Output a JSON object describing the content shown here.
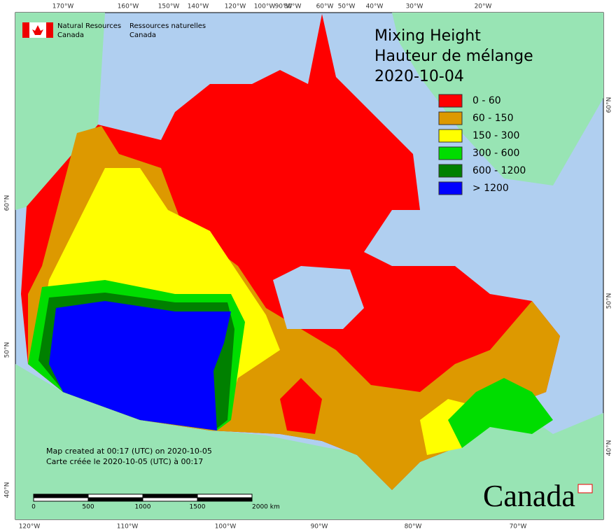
{
  "map": {
    "agency_en": [
      "Natural Resources",
      "Canada"
    ],
    "agency_fr": [
      "Ressources naturelles",
      "Canada"
    ],
    "title": [
      "Mixing Height",
      "Hauteur de mélange",
      "2020-10-04"
    ],
    "legend": [
      {
        "label": "0 - 60",
        "color": "#ff0000"
      },
      {
        "label": "60 - 150",
        "color": "#dd9900"
      },
      {
        "label": "150 - 300",
        "color": "#ffff00"
      },
      {
        "label": "300 - 600",
        "color": "#00dd00"
      },
      {
        "label": "600 - 1200",
        "color": "#008000"
      },
      {
        "label": "> 1200",
        "color": "#0000ff"
      }
    ],
    "top_longitudes": [
      "170°W",
      "160°W",
      "150°W",
      "140°W",
      "120°W",
      "100°W",
      "90°W",
      "80°W",
      "60°W",
      "50°W",
      "40°W",
      "30°W",
      "20°W"
    ],
    "bottom_longitudes": [
      "120°W",
      "110°W",
      "100°W",
      "90°W",
      "80°W",
      "70°W"
    ],
    "left_latitudes": [
      "60°N",
      "50°N",
      "40°N"
    ],
    "right_latitudes": [
      "60°N",
      "50°N",
      "40°N"
    ],
    "notes": [
      "Map created at 00:17 (UTC) on 2020-10-05",
      "Carte créée le 2020-10-05 (UTC) à 00:17"
    ],
    "scale_labels": [
      "0",
      "500",
      "1000",
      "1500",
      "2000 km"
    ],
    "wordmark": "Canada"
  }
}
